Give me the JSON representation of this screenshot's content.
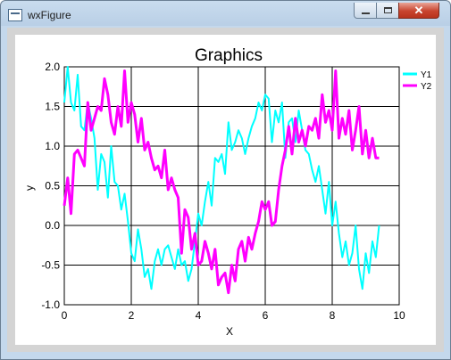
{
  "window": {
    "title": "wxFigure"
  },
  "chart_data": {
    "type": "line",
    "title": "Graphics",
    "xlabel": "X",
    "ylabel": "y",
    "xlim": [
      0,
      10
    ],
    "ylim": [
      -1.0,
      2.0
    ],
    "xticks": [
      "0",
      "2",
      "4",
      "6",
      "8",
      "10"
    ],
    "yticks": [
      "2.0",
      "1.5",
      "1.0",
      "0.5",
      "0.0",
      "-0.5",
      "-1.0"
    ],
    "grid": true,
    "legend": "top-right",
    "series": [
      {
        "name": "Y1",
        "color": "#00ffff",
        "x": [
          0.0,
          0.1,
          0.2,
          0.3,
          0.4,
          0.5,
          0.6,
          0.7,
          0.8,
          0.9,
          1.0,
          1.1,
          1.2,
          1.3,
          1.4,
          1.5,
          1.6,
          1.7,
          1.8,
          1.9,
          2.0,
          2.1,
          2.2,
          2.3,
          2.4,
          2.5,
          2.6,
          2.7,
          2.8,
          2.9,
          3.0,
          3.1,
          3.2,
          3.3,
          3.4,
          3.5,
          3.6,
          3.7,
          3.8,
          3.9,
          4.0,
          4.1,
          4.2,
          4.3,
          4.4,
          4.5,
          4.6,
          4.7,
          4.8,
          4.9,
          5.0,
          5.1,
          5.2,
          5.3,
          5.4,
          5.5,
          5.6,
          5.7,
          5.8,
          5.9,
          6.0,
          6.1,
          6.2,
          6.3,
          6.4,
          6.5,
          6.6,
          6.7,
          6.8,
          6.9,
          7.0,
          7.1,
          7.2,
          7.3,
          7.4,
          7.5,
          7.6,
          7.7,
          7.8,
          7.9,
          8.0,
          8.1,
          8.2,
          8.3,
          8.4,
          8.5,
          8.6,
          8.7,
          8.8,
          8.9,
          9.0,
          9.1,
          9.2,
          9.3,
          9.4
        ],
        "y": [
          1.55,
          2.0,
          1.55,
          1.45,
          1.9,
          1.25,
          1.2,
          1.55,
          1.35,
          1.1,
          0.45,
          0.9,
          0.8,
          0.35,
          1.0,
          0.55,
          0.5,
          0.2,
          0.4,
          0.05,
          -0.35,
          -0.45,
          -0.05,
          -0.3,
          -0.65,
          -0.55,
          -0.8,
          -0.45,
          -0.3,
          -0.5,
          -0.3,
          -0.25,
          -0.4,
          -0.55,
          -0.3,
          -0.5,
          -0.45,
          -0.7,
          -0.55,
          -0.2,
          0.15,
          0.0,
          0.3,
          0.55,
          0.25,
          0.85,
          0.8,
          0.9,
          0.65,
          1.3,
          0.95,
          1.05,
          1.2,
          1.1,
          0.9,
          1.1,
          1.25,
          1.35,
          1.55,
          1.45,
          1.65,
          1.6,
          1.05,
          1.45,
          1.3,
          1.55,
          0.85,
          1.3,
          1.35,
          1.05,
          1.45,
          1.2,
          0.95,
          0.9,
          0.7,
          0.55,
          0.75,
          0.45,
          0.15,
          0.55,
          0.0,
          0.3,
          -0.1,
          -0.4,
          -0.2,
          -0.5,
          -0.35,
          0.0,
          -0.55,
          -0.8,
          -0.35,
          -0.6,
          -0.2,
          -0.4,
          0.0
        ]
      },
      {
        "name": "Y2",
        "color": "#ff00ff",
        "x": [
          0.0,
          0.1,
          0.2,
          0.3,
          0.4,
          0.5,
          0.6,
          0.7,
          0.8,
          0.9,
          1.0,
          1.1,
          1.2,
          1.3,
          1.4,
          1.5,
          1.6,
          1.7,
          1.8,
          1.9,
          2.0,
          2.1,
          2.2,
          2.3,
          2.4,
          2.5,
          2.6,
          2.7,
          2.8,
          2.9,
          3.0,
          3.1,
          3.2,
          3.3,
          3.4,
          3.5,
          3.6,
          3.7,
          3.8,
          3.9,
          4.0,
          4.1,
          4.2,
          4.3,
          4.4,
          4.5,
          4.6,
          4.7,
          4.8,
          4.9,
          5.0,
          5.1,
          5.2,
          5.3,
          5.4,
          5.5,
          5.6,
          5.7,
          5.8,
          5.9,
          6.0,
          6.1,
          6.2,
          6.3,
          6.4,
          6.5,
          6.6,
          6.7,
          6.8,
          6.9,
          7.0,
          7.1,
          7.2,
          7.3,
          7.4,
          7.5,
          7.6,
          7.7,
          7.8,
          7.9,
          8.0,
          8.1,
          8.2,
          8.3,
          8.4,
          8.5,
          8.6,
          8.7,
          8.8,
          8.9,
          9.0,
          9.1,
          9.2,
          9.3,
          9.4
        ],
        "y": [
          0.25,
          0.6,
          0.15,
          0.9,
          0.95,
          0.85,
          0.75,
          1.55,
          1.2,
          1.35,
          1.5,
          1.45,
          1.85,
          1.65,
          1.3,
          1.15,
          1.5,
          1.25,
          1.95,
          1.3,
          1.55,
          1.4,
          1.05,
          1.35,
          0.95,
          1.05,
          0.85,
          0.7,
          0.75,
          0.6,
          0.95,
          0.45,
          0.6,
          0.45,
          0.35,
          -0.35,
          0.2,
          0.1,
          -0.3,
          -0.1,
          -0.5,
          -0.45,
          -0.2,
          -0.35,
          -0.55,
          -0.3,
          -0.75,
          -0.65,
          -0.6,
          -0.85,
          -0.5,
          -0.7,
          -0.3,
          -0.2,
          -0.45,
          -0.15,
          -0.3,
          -0.1,
          0.05,
          0.3,
          0.2,
          0.3,
          0.0,
          0.05,
          0.45,
          0.75,
          0.95,
          1.25,
          0.9,
          1.35,
          1.05,
          1.2,
          1.0,
          1.25,
          1.2,
          1.35,
          1.1,
          1.65,
          1.3,
          1.45,
          1.2,
          1.95,
          1.1,
          1.35,
          1.15,
          1.45,
          0.95,
          1.2,
          1.5,
          0.9,
          1.2,
          0.85,
          1.1,
          0.85,
          0.85
        ]
      }
    ]
  }
}
